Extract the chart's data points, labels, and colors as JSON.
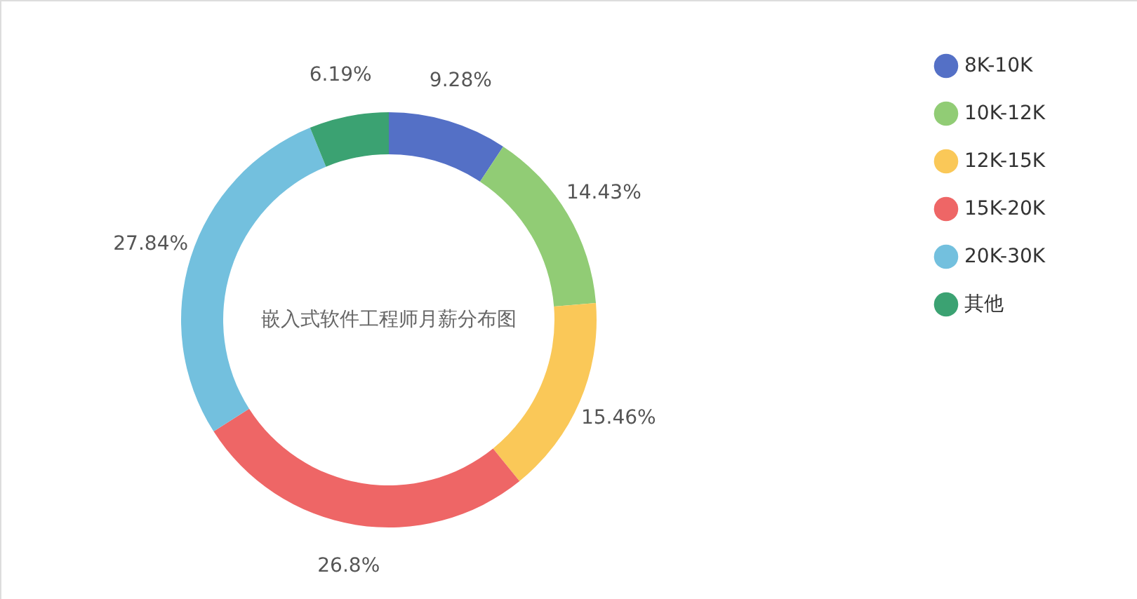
{
  "chart_data": {
    "type": "donut",
    "title": "嵌入式软件工程师月薪分布图",
    "categories": [
      "8K-10K",
      "10K-12K",
      "12K-15K",
      "15K-20K",
      "20K-30K",
      "其他"
    ],
    "values": [
      9.28,
      14.43,
      15.46,
      26.8,
      27.84,
      6.19
    ],
    "value_labels": [
      "9.28%",
      "14.43%",
      "15.46%",
      "26.8%",
      "27.84%",
      "6.19%"
    ],
    "colors": [
      "#5470c6",
      "#91cc75",
      "#fac858",
      "#ee6666",
      "#73c0de",
      "#3ba272"
    ],
    "legend": "top right"
  }
}
